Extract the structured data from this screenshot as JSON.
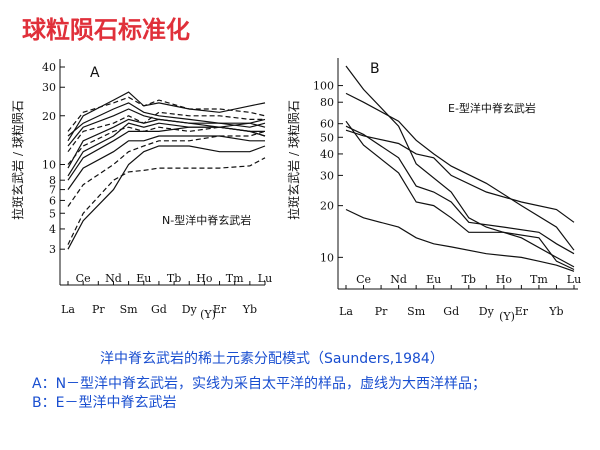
{
  "slide": {
    "title": "球粒陨石标准化"
  },
  "captions": {
    "title": "洋中脊玄武岩的稀土元素分配模式（Saunders,1984）",
    "a": "A：N－型洋中脊玄武岩，实线为采自太平洋的样品，虚线为大西洋样品；",
    "b": "B：E－型洋中脊玄武岩"
  },
  "colors": {
    "caption": "#1a4fd0",
    "title": "#e0303a",
    "lines": "#111111"
  },
  "chart_data": [
    {
      "type": "line",
      "panel": "A",
      "annotation": "N-型洋中脊玄武岩",
      "ylabel": "拉斑玄武岩 / 球粒陨石",
      "xlabel": "(Y)",
      "y_scale": "log",
      "ylim": [
        2.5,
        40
      ],
      "y_ticks": [
        3,
        4,
        5,
        6,
        7,
        8,
        10,
        20,
        30,
        40
      ],
      "x_top_labels": [
        "Ce",
        "Nd",
        "Sm",
        "Gd",
        "Dy",
        "Er",
        "Yb"
      ],
      "x_bottom_labels": [
        "La",
        "Pr",
        "Eu",
        "Tb",
        "Ho",
        "Tm",
        "Lu"
      ],
      "categories": [
        "La",
        "Ce",
        "Pr",
        "Nd",
        "Sm",
        "Eu",
        "Gd",
        "Tb",
        "Dy",
        "Ho",
        "Er",
        "Tm",
        "Yb",
        "Lu"
      ],
      "series": [
        {
          "style": "solid",
          "values": [
            15,
            18,
            null,
            22,
            24,
            21,
            20,
            null,
            19,
            null,
            18,
            null,
            18,
            17
          ]
        },
        {
          "style": "solid",
          "values": [
            14,
            20,
            null,
            25,
            28,
            23,
            24,
            null,
            22,
            null,
            21,
            null,
            23,
            24
          ]
        },
        {
          "style": "solid",
          "values": [
            13,
            17,
            null,
            20,
            22,
            20,
            19,
            null,
            18,
            null,
            17,
            null,
            16,
            15
          ]
        },
        {
          "style": "solid",
          "values": [
            9.5,
            14,
            null,
            17,
            19,
            18,
            19,
            null,
            18,
            null,
            18,
            null,
            17,
            18
          ]
        },
        {
          "style": "solid",
          "values": [
            8.5,
            12,
            null,
            15,
            18,
            17,
            18,
            null,
            17,
            null,
            17,
            null,
            16,
            16
          ]
        },
        {
          "style": "solid",
          "values": [
            8,
            11,
            null,
            14,
            16,
            16,
            16,
            null,
            17,
            null,
            17,
            null,
            18,
            19
          ]
        },
        {
          "style": "solid",
          "values": [
            7,
            9.5,
            null,
            12,
            14,
            14,
            15,
            null,
            15,
            null,
            15,
            null,
            14,
            14
          ]
        },
        {
          "style": "solid",
          "values": [
            3,
            4.5,
            null,
            7,
            10,
            12,
            13,
            null,
            13,
            null,
            12,
            null,
            12,
            13
          ]
        },
        {
          "style": "dashed",
          "values": [
            16,
            21,
            null,
            24,
            26,
            23,
            25,
            null,
            22,
            null,
            22,
            null,
            21,
            20
          ]
        },
        {
          "style": "dashed",
          "values": [
            12,
            16,
            null,
            18,
            20,
            18,
            21,
            null,
            20,
            null,
            20,
            null,
            19,
            19
          ]
        },
        {
          "style": "dashed",
          "values": [
            10,
            13,
            null,
            16,
            17,
            16,
            17,
            null,
            16,
            null,
            17,
            null,
            16,
            15
          ]
        },
        {
          "style": "dashed",
          "values": [
            5.5,
            7.5,
            null,
            10,
            12,
            13,
            14,
            null,
            14,
            null,
            15,
            null,
            15,
            16
          ]
        },
        {
          "style": "dashed",
          "values": [
            3.2,
            5,
            null,
            8,
            9,
            9.2,
            9.5,
            null,
            9.5,
            null,
            9.5,
            null,
            9.8,
            11
          ]
        }
      ]
    },
    {
      "type": "line",
      "panel": "B",
      "annotation": "E-型洋中脊玄武岩",
      "ylabel": "拉斑玄武岩 / 球粒陨石",
      "xlabel": "(Y)",
      "y_scale": "log",
      "ylim": [
        8,
        130
      ],
      "y_ticks": [
        10,
        20,
        30,
        40,
        50,
        60,
        80,
        100
      ],
      "x_top_labels": [
        "Ce",
        "Nd",
        "Sm",
        "Gd",
        "Dy",
        "Er",
        "Yb"
      ],
      "x_bottom_labels": [
        "La",
        "Pr",
        "Eu",
        "Tb",
        "Ho",
        "Tm",
        "Lu"
      ],
      "categories": [
        "La",
        "Ce",
        "Pr",
        "Nd",
        "Sm",
        "Eu",
        "Gd",
        "Tb",
        "Dy",
        "Ho",
        "Er",
        "Tm",
        "Yb",
        "Lu"
      ],
      "series": [
        {
          "style": "solid",
          "values": [
            130,
            95,
            null,
            58,
            35,
            null,
            24,
            17,
            15,
            null,
            13,
            null,
            10,
            8.8
          ]
        },
        {
          "style": "solid",
          "values": [
            90,
            80,
            null,
            62,
            48,
            40,
            34,
            null,
            27,
            null,
            20,
            null,
            15,
            11
          ]
        },
        {
          "style": "solid",
          "values": [
            62,
            45,
            null,
            31,
            21,
            20,
            17,
            14,
            null,
            14,
            null,
            13,
            9.5,
            8.5
          ]
        },
        {
          "style": "solid",
          "values": [
            55,
            51,
            null,
            46,
            40,
            38,
            30,
            null,
            24,
            null,
            21,
            null,
            19,
            16
          ]
        },
        {
          "style": "solid",
          "values": [
            58,
            52,
            null,
            38,
            26,
            24,
            21,
            16,
            null,
            15,
            null,
            14,
            12,
            10.5
          ]
        },
        {
          "style": "solid",
          "values": [
            19,
            17,
            null,
            15,
            13,
            12,
            11.5,
            null,
            10.5,
            null,
            10,
            9.5,
            9,
            8.3
          ]
        }
      ]
    }
  ]
}
